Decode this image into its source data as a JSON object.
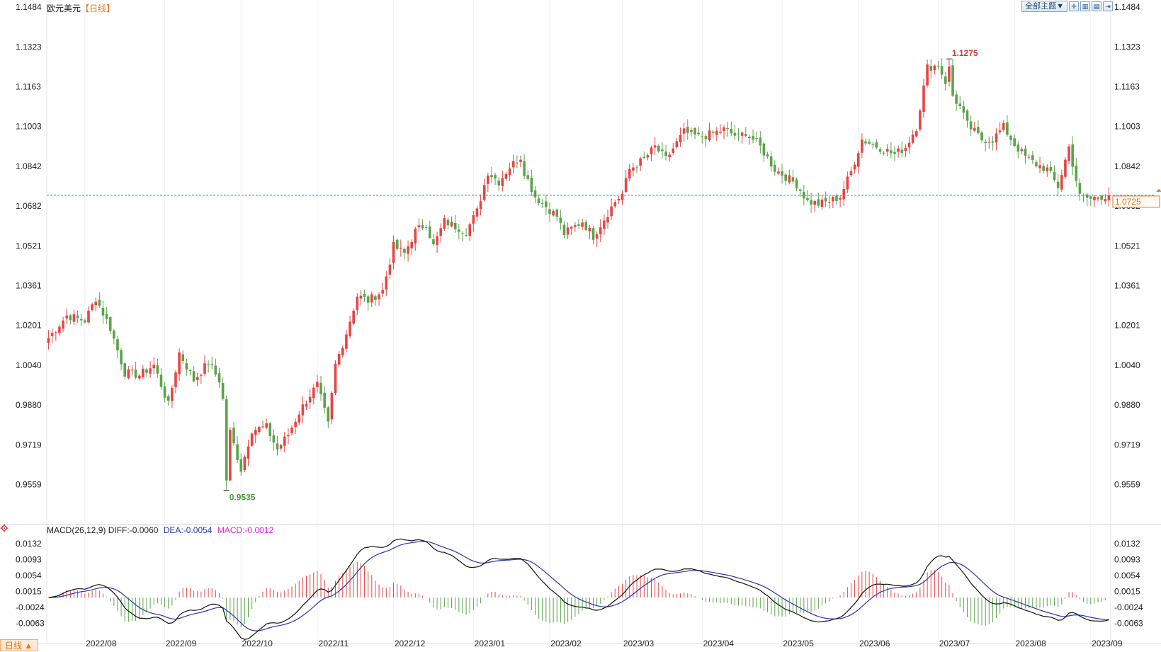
{
  "header": {
    "symbol": "欧元美元",
    "period_tag": "【日线】"
  },
  "toolbar": {
    "theme_label": "全部主题▼",
    "icons": [
      "crosshair-icon",
      "zoom-in-icon",
      "zoom-out-icon",
      "scroll-end-icon"
    ]
  },
  "period_button": {
    "label": "日线 ▲"
  },
  "macd": {
    "label": "MACD(26,12,9)",
    "diff_label": "DIFF:-0.0060",
    "dea_label": "DEA:-0.0054",
    "macd_label": "MACD:-0.0012"
  },
  "colors": {
    "up": "#e64545",
    "down": "#5aa34a",
    "diff": "#111111",
    "dea": "#2b33b0",
    "macd_text": "#e020e0",
    "price_line": "#2a8bd9",
    "price_box": "#e5751c"
  },
  "chart_data": [
    {
      "type": "candlestick",
      "ylim": [
        0.94,
        1.1484
      ],
      "yticks": [
        "1.1484",
        "1.1323",
        "1.1163",
        "1.1003",
        "1.0842",
        "1.0682",
        "1.0521",
        "1.0361",
        "1.0201",
        "1.0040",
        "0.9880",
        "0.9719",
        "0.9559"
      ],
      "xticks": [
        "2022/08",
        "2022/09",
        "2022/10",
        "2022/11",
        "2022/12",
        "2023/01",
        "2023/02",
        "2023/03",
        "2023/04",
        "2023/05",
        "2023/06",
        "2023/07",
        "2023/08",
        "2023/09"
      ],
      "xtick_index": [
        10,
        32,
        53,
        74,
        95,
        117,
        138,
        158,
        180,
        202,
        223,
        245,
        266,
        287
      ],
      "anchors_index": [
        0,
        5,
        10,
        13,
        17,
        21,
        25,
        29,
        33,
        36,
        40,
        44,
        47,
        49,
        53,
        56,
        60,
        63,
        66,
        69,
        72,
        74,
        77,
        79,
        82,
        85,
        88,
        92,
        95,
        98,
        101,
        104,
        106,
        109,
        112,
        115,
        118,
        121,
        124,
        127,
        130,
        131,
        134,
        137,
        140,
        142,
        145,
        147,
        150,
        153,
        156,
        158,
        160,
        164,
        167,
        170,
        175,
        179,
        182,
        186,
        190,
        192,
        196,
        200,
        202,
        206,
        209,
        212,
        215,
        218,
        221,
        224,
        227,
        230,
        233,
        236,
        239,
        242,
        245,
        248,
        251,
        253,
        257,
        260,
        263,
        266,
        269,
        272,
        275,
        278,
        281,
        284,
        287,
        289,
        292
      ],
      "anchors_close": [
        1.015,
        1.024,
        1.022,
        1.031,
        1.019,
        1.001,
        1.0,
        1.004,
        0.988,
        1.009,
        0.998,
        1.005,
        0.998,
        0.982,
        0.962,
        0.978,
        0.979,
        0.97,
        0.976,
        0.985,
        0.992,
        0.996,
        0.98,
        1.004,
        1.017,
        1.032,
        1.03,
        1.034,
        1.052,
        1.049,
        1.058,
        1.061,
        1.052,
        1.062,
        1.06,
        1.058,
        1.066,
        1.082,
        1.078,
        1.084,
        1.088,
        1.082,
        1.072,
        1.068,
        1.064,
        1.057,
        1.06,
        1.062,
        1.056,
        1.063,
        1.07,
        1.073,
        1.083,
        1.087,
        1.092,
        1.087,
        1.098,
        1.096,
        1.097,
        1.099,
        1.096,
        1.098,
        1.092,
        1.083,
        1.081,
        1.077,
        1.07,
        1.069,
        1.07,
        1.072,
        1.082,
        1.095,
        1.093,
        1.091,
        1.089,
        1.092,
        1.1,
        1.124,
        1.125,
        1.115,
        1.108,
        1.101,
        1.095,
        1.095,
        1.1,
        1.093,
        1.088,
        1.085,
        1.083,
        1.076,
        1.092,
        1.072,
        1.071,
        1.072,
        1.0725
      ],
      "count": 293,
      "last_price": "1.0725",
      "high_marker": {
        "label": "1.1275",
        "index": 248,
        "value": 1.1275
      },
      "low_marker": {
        "label": "0.9535",
        "index": 49,
        "value": 0.9535
      }
    },
    {
      "type": "bar+line",
      "name": "MACD",
      "ylim": [
        -0.0085,
        0.0155
      ],
      "yticks": [
        "0.0132",
        "0.0093",
        "0.0054",
        "0.0015",
        "-0.0024",
        "-0.0063"
      ],
      "ytick_values": [
        0.0132,
        0.0093,
        0.0054,
        0.0015,
        -0.0024,
        -0.0063
      ]
    }
  ]
}
